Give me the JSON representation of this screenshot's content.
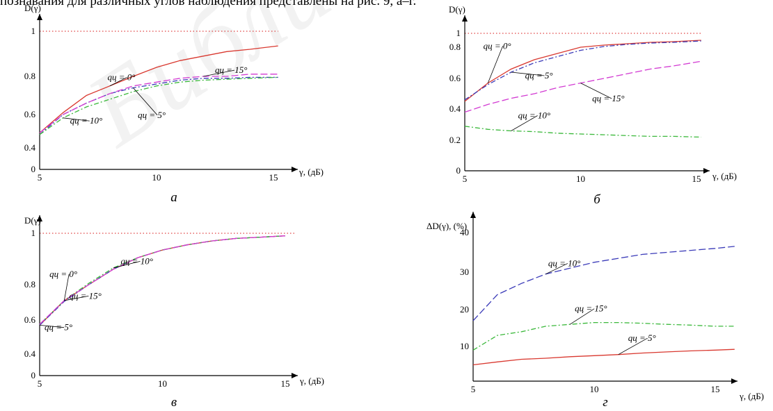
{
  "caption": "познавания для различных углов наблюдения представлены на рис. 9, а–г.",
  "watermark": "Библиотека БГУИР",
  "colors": {
    "red": "#d9382f",
    "blue": "#3a3ab8",
    "magenta": "#d23ad2",
    "green": "#3ab83a",
    "ref": "#e04040"
  },
  "chart_data": [
    {
      "type": "line",
      "panel": "а",
      "xlabel": "γ, (дБ)",
      "ylabel": "D(γ)",
      "xticks": [
        "5",
        "10",
        "15"
      ],
      "yticks": [
        "0",
        "0.4",
        "0.6",
        "0.8",
        "1"
      ],
      "xlim": [
        5,
        15.2
      ],
      "ref_line": 1,
      "series": [
        {
          "name": "qц = 0°",
          "color": "#d9382f",
          "dash": "",
          "x": [
            5,
            6,
            7,
            8,
            9,
            10,
            11,
            12,
            13,
            14,
            15.2
          ],
          "y": [
            0.49,
            0.61,
            0.7,
            0.75,
            0.8,
            0.84,
            0.87,
            0.89,
            0.91,
            0.92,
            0.935
          ]
        },
        {
          "name": "qц = 5°",
          "color": "#3a3ab8",
          "dash": "7 3 2 3",
          "x": [
            5,
            6,
            7,
            8,
            9,
            10,
            11,
            12,
            13,
            14,
            15.2
          ],
          "y": [
            0.48,
            0.6,
            0.66,
            0.71,
            0.74,
            0.76,
            0.78,
            0.79,
            0.79,
            0.795,
            0.795
          ]
        },
        {
          "name": "qц = 10°",
          "color": "#3ab83a",
          "dash": "7 3 2 3",
          "x": [
            5,
            6,
            7,
            8,
            9,
            10,
            11,
            12,
            13,
            14,
            15.2
          ],
          "y": [
            0.48,
            0.58,
            0.64,
            0.68,
            0.72,
            0.75,
            0.77,
            0.78,
            0.785,
            0.79,
            0.795
          ]
        },
        {
          "name": "qц = 15°",
          "color": "#d23ad2",
          "dash": "10 4",
          "x": [
            5,
            6,
            7,
            8,
            9,
            10,
            11,
            12,
            13,
            14,
            15.2
          ],
          "y": [
            0.49,
            0.6,
            0.66,
            0.71,
            0.75,
            0.77,
            0.79,
            0.8,
            0.8,
            0.81,
            0.81
          ]
        }
      ],
      "annotations": [
        {
          "label": "qц = 0°",
          "x": 7.9,
          "y": 0.78
        },
        {
          "label": "qц = 15°",
          "x": 12.5,
          "y": 0.815
        },
        {
          "label": "qц = 5°",
          "x": 9.2,
          "y": 0.58
        },
        {
          "label": "qц = 10°",
          "x": 6.3,
          "y": 0.545
        }
      ]
    },
    {
      "type": "line",
      "panel": "б",
      "xlabel": "γ, (дБ)",
      "ylabel": "D(γ)",
      "xticks": [
        "5",
        "10",
        "15"
      ],
      "yticks": [
        "0",
        "0.2",
        "0.4",
        "0.6",
        "0.8",
        "1"
      ],
      "xlim": [
        5,
        15.2
      ],
      "ref_line": 1,
      "series": [
        {
          "name": "qц = 0°",
          "color": "#d9382f",
          "dash": "",
          "x": [
            5,
            6,
            7,
            8,
            9,
            10,
            11,
            12,
            13,
            14,
            15.2
          ],
          "y": [
            0.45,
            0.57,
            0.66,
            0.72,
            0.76,
            0.8,
            0.83,
            0.85,
            0.87,
            0.88,
            0.9
          ]
        },
        {
          "name": "qц = 5°",
          "color": "#3a3ab8",
          "dash": "7 3 2 3",
          "x": [
            5,
            6,
            7,
            8,
            9,
            10,
            11,
            12,
            13,
            14,
            15.2
          ],
          "y": [
            0.46,
            0.56,
            0.64,
            0.7,
            0.74,
            0.78,
            0.81,
            0.84,
            0.86,
            0.87,
            0.89
          ]
        },
        {
          "name": "qц = 15°",
          "color": "#d23ad2",
          "dash": "10 4",
          "x": [
            5,
            6,
            7,
            8,
            9,
            10,
            11,
            12,
            13,
            14,
            15.2
          ],
          "y": [
            0.38,
            0.43,
            0.47,
            0.5,
            0.54,
            0.57,
            0.6,
            0.63,
            0.66,
            0.68,
            0.71
          ]
        },
        {
          "name": "qц = 10°",
          "color": "#3ab83a",
          "dash": "7 3 2 3",
          "x": [
            5,
            6,
            7,
            8,
            9,
            10,
            11,
            12,
            13,
            14,
            15.2
          ],
          "y": [
            0.29,
            0.27,
            0.26,
            0.255,
            0.245,
            0.24,
            0.235,
            0.23,
            0.225,
            0.225,
            0.22
          ]
        }
      ],
      "annotations": [
        {
          "label": "qц = 0°",
          "x": 5.8,
          "y": 0.79
        },
        {
          "label": "qц = 5°",
          "x": 7.6,
          "y": 0.6
        },
        {
          "label": "qц = 15°",
          "x": 10.5,
          "y": 0.45
        },
        {
          "label": "qц = 10°",
          "x": 7.3,
          "y": 0.34
        }
      ]
    },
    {
      "type": "line",
      "panel": "в",
      "xlabel": "γ, (дБ)",
      "ylabel": "D(γ)",
      "xticks": [
        "5",
        "10",
        "15"
      ],
      "yticks": [
        "0",
        "0.4",
        "0.6",
        "0.8",
        "1"
      ],
      "xlim": [
        5,
        15.4
      ],
      "ref_line": 1,
      "series": [
        {
          "name": "qц = 0°",
          "color": "#d9382f",
          "dash": "",
          "x": [
            5,
            6,
            7,
            8,
            9,
            10,
            11,
            12,
            13,
            14,
            15
          ],
          "y": [
            0.57,
            0.71,
            0.8,
            0.86,
            0.905,
            0.935,
            0.955,
            0.97,
            0.98,
            0.985,
            0.99
          ]
        },
        {
          "name": "qц = 5°",
          "color": "#3a3ab8",
          "dash": "7 3 2 3",
          "x": [
            5,
            6,
            7,
            8,
            9,
            10,
            11,
            12,
            13,
            14,
            15
          ],
          "y": [
            0.57,
            0.705,
            0.8,
            0.86,
            0.905,
            0.935,
            0.955,
            0.97,
            0.98,
            0.985,
            0.99
          ]
        },
        {
          "name": "qц = 10°",
          "color": "#3ab83a",
          "dash": "7 3 2 3",
          "x": [
            5,
            6,
            7,
            8,
            9,
            10,
            11,
            12,
            13,
            14,
            15
          ],
          "y": [
            0.575,
            0.71,
            0.805,
            0.865,
            0.905,
            0.935,
            0.955,
            0.97,
            0.98,
            0.985,
            0.99
          ]
        },
        {
          "name": "qц = 15°",
          "color": "#d23ad2",
          "dash": "10 4",
          "x": [
            5,
            6,
            7,
            8,
            9,
            10,
            11,
            12,
            13,
            14,
            15
          ],
          "y": [
            0.575,
            0.71,
            0.8,
            0.86,
            0.905,
            0.935,
            0.955,
            0.97,
            0.98,
            0.985,
            0.99
          ]
        }
      ],
      "annotations": [
        {
          "label": "qц = 0°",
          "x": 5.4,
          "y": 0.83
        },
        {
          "label": "qц = 15°",
          "x": 6.2,
          "y": 0.72
        },
        {
          "label": "qц = 10°",
          "x": 8.3,
          "y": 0.88
        },
        {
          "label": "qц = 5°",
          "x": 5.2,
          "y": 0.54
        }
      ]
    },
    {
      "type": "line",
      "panel": "г",
      "xlabel": "γ, (дБ)",
      "ylabel": "ΔD(γ), (%)",
      "xticks": [
        "5",
        "10",
        "15"
      ],
      "yticks": [
        "10",
        "20",
        "30",
        "40"
      ],
      "xlim": [
        5,
        15.8
      ],
      "ylim": [
        4,
        45
      ],
      "series": [
        {
          "name": "qц = 10°",
          "color": "#3a3ab8",
          "dash": "10 4",
          "x": [
            5,
            6,
            7,
            8,
            9,
            10,
            11,
            12,
            13,
            14,
            15,
            15.8
          ],
          "y": [
            17,
            24,
            27,
            29.5,
            31,
            32.5,
            33.5,
            34.5,
            35,
            35.5,
            36,
            36.5
          ]
        },
        {
          "name": "qц = 15°",
          "color": "#3ab83a",
          "dash": "7 3 2 3",
          "x": [
            5,
            6,
            7,
            8,
            9,
            10,
            11,
            12,
            13,
            14,
            15,
            15.8
          ],
          "y": [
            9,
            13,
            14,
            15.5,
            16,
            16.5,
            16.5,
            16.3,
            16,
            15.8,
            15.5,
            15.5
          ]
        },
        {
          "name": "qц = 5°",
          "color": "#d9382f",
          "dash": "",
          "x": [
            5,
            6,
            7,
            8,
            9,
            10,
            11,
            12,
            13,
            14,
            15,
            15.8
          ],
          "y": [
            5,
            5.8,
            6.5,
            6.8,
            7.2,
            7.5,
            7.8,
            8.2,
            8.5,
            8.8,
            9,
            9.2
          ]
        }
      ],
      "annotations": [
        {
          "label": "qц = 10°",
          "x": 8.1,
          "y": 31.5
        },
        {
          "label": "qц = 15°",
          "x": 9.2,
          "y": 19.5
        },
        {
          "label": "qц = 5°",
          "x": 11.4,
          "y": 11.5
        }
      ]
    }
  ]
}
